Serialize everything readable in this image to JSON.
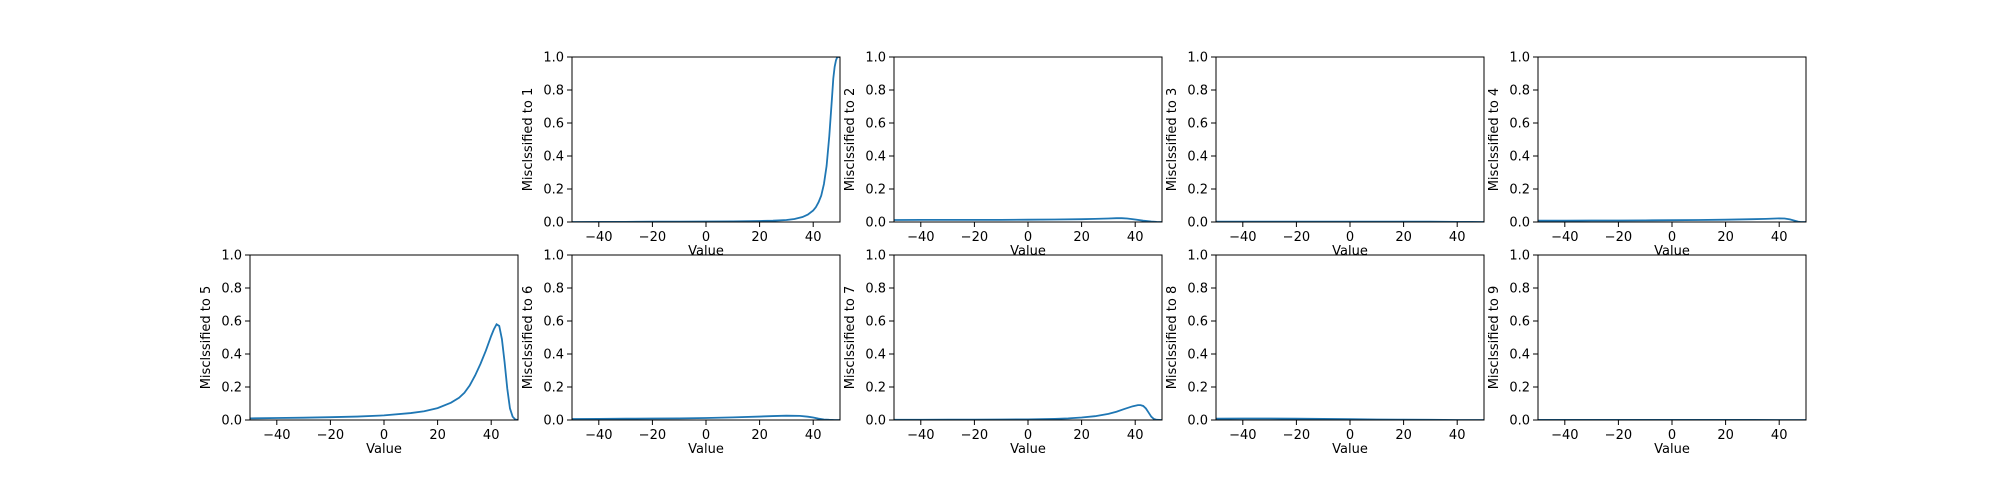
{
  "chart_data": [
    {
      "type": "line",
      "ylabel": "Misclssified to 1",
      "xlabel": "Value",
      "xlim": [
        -50,
        50
      ],
      "ylim": [
        0,
        1
      ],
      "xticks": [
        -40,
        -20,
        0,
        20,
        40
      ],
      "yticks": [
        0.0,
        0.2,
        0.4,
        0.6,
        0.8,
        1.0
      ],
      "grid": false,
      "series": [
        {
          "x": [
            -50,
            -40,
            -30,
            -20,
            -10,
            0,
            10,
            20,
            25,
            30,
            33,
            36,
            38,
            40,
            41,
            42,
            43,
            44,
            45,
            46,
            47,
            47.5,
            48,
            48.5,
            49,
            50
          ],
          "values": [
            0.0,
            0.001,
            0.001,
            0.002,
            0.002,
            0.003,
            0.004,
            0.006,
            0.008,
            0.012,
            0.018,
            0.03,
            0.045,
            0.07,
            0.09,
            0.12,
            0.16,
            0.23,
            0.34,
            0.52,
            0.75,
            0.87,
            0.94,
            0.98,
            1.0,
            1.0
          ]
        }
      ]
    },
    {
      "type": "line",
      "ylabel": "Misclssified to 2",
      "xlabel": "Value",
      "xlim": [
        -50,
        50
      ],
      "ylim": [
        0,
        1
      ],
      "xticks": [
        -40,
        -20,
        0,
        20,
        40
      ],
      "yticks": [
        0.0,
        0.2,
        0.4,
        0.6,
        0.8,
        1.0
      ],
      "grid": false,
      "series": [
        {
          "x": [
            -50,
            -40,
            -30,
            -20,
            -10,
            0,
            10,
            20,
            25,
            30,
            33,
            35,
            37,
            40,
            43,
            46,
            48,
            50
          ],
          "values": [
            0.012,
            0.013,
            0.013,
            0.013,
            0.013,
            0.014,
            0.015,
            0.017,
            0.019,
            0.021,
            0.023,
            0.023,
            0.021,
            0.015,
            0.008,
            0.003,
            0.001,
            0.0
          ]
        }
      ]
    },
    {
      "type": "line",
      "ylabel": "Misclssified to 3",
      "xlabel": "Value",
      "xlim": [
        -50,
        50
      ],
      "ylim": [
        0,
        1
      ],
      "xticks": [
        -40,
        -20,
        0,
        20,
        40
      ],
      "yticks": [
        0.0,
        0.2,
        0.4,
        0.6,
        0.8,
        1.0
      ],
      "grid": false,
      "series": [
        {
          "x": [
            -50,
            -30,
            -10,
            0,
            10,
            20,
            30,
            40,
            45,
            50
          ],
          "values": [
            0.002,
            0.002,
            0.002,
            0.002,
            0.002,
            0.002,
            0.002,
            0.001,
            0.0005,
            0.0
          ]
        }
      ]
    },
    {
      "type": "line",
      "ylabel": "Misclssified to 4",
      "xlabel": "Value",
      "xlim": [
        -50,
        50
      ],
      "ylim": [
        0,
        1
      ],
      "xticks": [
        -40,
        -20,
        0,
        20,
        40
      ],
      "yticks": [
        0.0,
        0.2,
        0.4,
        0.6,
        0.8,
        1.0
      ],
      "grid": false,
      "series": [
        {
          "x": [
            -50,
            -40,
            -30,
            -20,
            -10,
            0,
            10,
            20,
            30,
            35,
            40,
            42,
            44,
            46,
            47,
            48,
            50
          ],
          "values": [
            0.008,
            0.008,
            0.009,
            0.009,
            0.01,
            0.011,
            0.012,
            0.014,
            0.017,
            0.019,
            0.022,
            0.021,
            0.016,
            0.007,
            0.002,
            0.0,
            0.0
          ]
        }
      ]
    },
    {
      "type": "line",
      "ylabel": "Misclssified to 5",
      "xlabel": "Value",
      "xlim": [
        -50,
        50
      ],
      "ylim": [
        0,
        1
      ],
      "xticks": [
        -40,
        -20,
        0,
        20,
        40
      ],
      "yticks": [
        0.0,
        0.2,
        0.4,
        0.6,
        0.8,
        1.0
      ],
      "grid": false,
      "series": [
        {
          "x": [
            -50,
            -40,
            -30,
            -20,
            -10,
            0,
            10,
            15,
            20,
            25,
            28,
            30,
            32,
            34,
            36,
            38,
            40,
            41,
            42,
            43,
            44,
            45,
            46,
            47,
            48,
            49,
            50
          ],
          "values": [
            0.01,
            0.012,
            0.014,
            0.017,
            0.021,
            0.028,
            0.042,
            0.053,
            0.072,
            0.105,
            0.135,
            0.165,
            0.21,
            0.27,
            0.34,
            0.42,
            0.51,
            0.55,
            0.58,
            0.57,
            0.49,
            0.35,
            0.19,
            0.07,
            0.02,
            0.003,
            0.0
          ]
        }
      ]
    },
    {
      "type": "line",
      "ylabel": "Misclssified to 6",
      "xlabel": "Value",
      "xlim": [
        -50,
        50
      ],
      "ylim": [
        0,
        1
      ],
      "xticks": [
        -40,
        -20,
        0,
        20,
        40
      ],
      "yticks": [
        0.0,
        0.2,
        0.4,
        0.6,
        0.8,
        1.0
      ],
      "grid": false,
      "series": [
        {
          "x": [
            -50,
            -40,
            -30,
            -20,
            -10,
            0,
            10,
            20,
            25,
            30,
            35,
            38,
            40,
            42,
            44,
            46,
            48,
            50
          ],
          "values": [
            0.006,
            0.007,
            0.008,
            0.009,
            0.01,
            0.012,
            0.016,
            0.021,
            0.024,
            0.026,
            0.025,
            0.02,
            0.015,
            0.008,
            0.003,
            0.001,
            0.0,
            0.0
          ]
        }
      ]
    },
    {
      "type": "line",
      "ylabel": "Misclssified to 7",
      "xlabel": "Value",
      "xlim": [
        -50,
        50
      ],
      "ylim": [
        0,
        1
      ],
      "xticks": [
        -40,
        -20,
        0,
        20,
        40
      ],
      "yticks": [
        0.0,
        0.2,
        0.4,
        0.6,
        0.8,
        1.0
      ],
      "grid": false,
      "series": [
        {
          "x": [
            -50,
            -40,
            -30,
            -20,
            -10,
            0,
            10,
            15,
            20,
            25,
            30,
            33,
            36,
            39,
            41,
            42,
            43,
            44,
            45,
            46,
            47,
            48,
            50
          ],
          "values": [
            0.001,
            0.001,
            0.002,
            0.002,
            0.003,
            0.004,
            0.007,
            0.01,
            0.015,
            0.023,
            0.037,
            0.05,
            0.067,
            0.083,
            0.09,
            0.09,
            0.085,
            0.07,
            0.045,
            0.02,
            0.006,
            0.001,
            0.0
          ]
        }
      ]
    },
    {
      "type": "line",
      "ylabel": "Misclssified to 8",
      "xlabel": "Value",
      "xlim": [
        -50,
        50
      ],
      "ylim": [
        0,
        1
      ],
      "xticks": [
        -40,
        -20,
        0,
        20,
        40
      ],
      "yticks": [
        0.0,
        0.2,
        0.4,
        0.6,
        0.8,
        1.0
      ],
      "grid": false,
      "series": [
        {
          "x": [
            -50,
            -40,
            -30,
            -20,
            -10,
            0,
            10,
            20,
            30,
            40,
            50
          ],
          "values": [
            0.008,
            0.009,
            0.009,
            0.008,
            0.007,
            0.005,
            0.003,
            0.002,
            0.001,
            0.0,
            0.0
          ]
        }
      ]
    },
    {
      "type": "line",
      "ylabel": "Misclssified to 9",
      "xlabel": "Value",
      "xlim": [
        -50,
        50
      ],
      "ylim": [
        0,
        1
      ],
      "xticks": [
        -40,
        -20,
        0,
        20,
        40
      ],
      "yticks": [
        0.0,
        0.2,
        0.4,
        0.6,
        0.8,
        1.0
      ],
      "grid": false,
      "series": [
        {
          "x": [
            -50,
            -30,
            -10,
            0,
            10,
            30,
            50
          ],
          "values": [
            0.0005,
            0.0005,
            0.0005,
            0.0005,
            0.0005,
            0.0003,
            0.0
          ]
        }
      ]
    }
  ],
  "colors": {
    "series": "#1f77b4",
    "axis": "#000000",
    "background": "#ffffff"
  }
}
